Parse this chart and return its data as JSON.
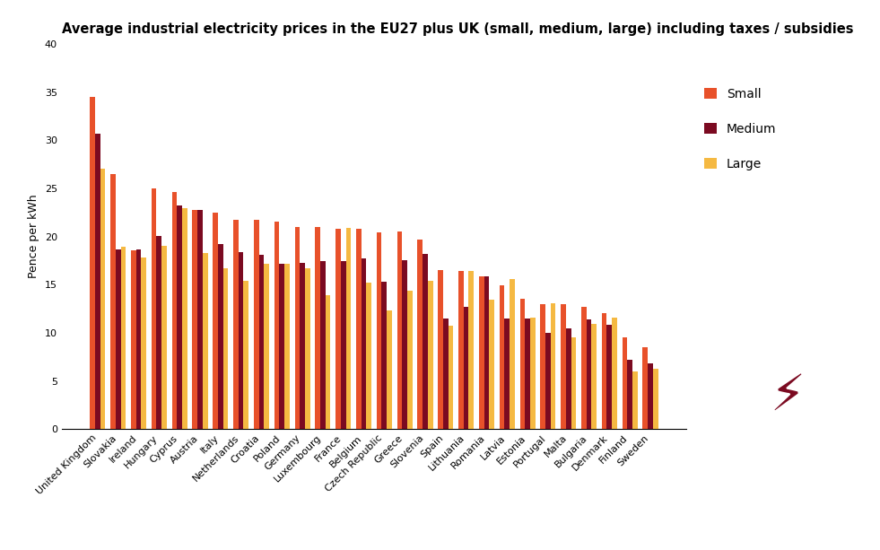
{
  "title": "Average industrial electricity prices in the EU27 plus UK (small, medium, large) including taxes / subsidies",
  "ylabel": "Pence per kWh",
  "ylim": [
    0,
    40
  ],
  "yticks": [
    0,
    5,
    10,
    15,
    20,
    25,
    30,
    35,
    40
  ],
  "countries": [
    "United Kingdom",
    "Slovakia",
    "Ireland",
    "Hungary",
    "Cyprus",
    "Austria",
    "Italy",
    "Netherlands",
    "Croatia",
    "Poland",
    "Germany",
    "Luxembourg",
    "France",
    "Belgium",
    "Czech Republic",
    "Greece",
    "Slovenia",
    "Spain",
    "Lithuania",
    "Romania",
    "Latvia",
    "Estonia",
    "Portugal",
    "Malta",
    "Bulgaria",
    "Denmark",
    "Finland",
    "Sweden"
  ],
  "small": [
    34.5,
    26.5,
    18.6,
    25.0,
    24.6,
    22.8,
    22.5,
    21.7,
    21.7,
    21.5,
    21.0,
    21.0,
    20.8,
    20.8,
    20.4,
    20.5,
    19.7,
    16.5,
    16.4,
    15.9,
    14.9,
    13.5,
    13.0,
    13.0,
    12.7,
    12.0,
    9.5,
    8.5
  ],
  "medium": [
    30.7,
    18.7,
    18.7,
    20.1,
    23.2,
    22.8,
    19.2,
    18.4,
    18.1,
    17.2,
    17.3,
    17.4,
    17.4,
    17.7,
    15.3,
    17.5,
    18.2,
    11.5,
    12.7,
    15.9,
    11.5,
    11.5,
    10.0,
    10.5,
    11.4,
    10.8,
    7.2,
    6.8
  ],
  "large": [
    27.0,
    18.9,
    17.8,
    19.0,
    22.9,
    18.3,
    16.7,
    15.4,
    17.2,
    17.2,
    16.7,
    13.9,
    20.9,
    15.2,
    12.3,
    14.4,
    15.4,
    10.7,
    16.4,
    13.4,
    15.6,
    11.6,
    13.1,
    9.5,
    10.9,
    11.6,
    6.0,
    6.3
  ],
  "color_small": "#E8512A",
  "color_medium": "#7B0A21",
  "color_large": "#F5B942",
  "bar_width": 0.25,
  "title_fontsize": 10.5,
  "label_fontsize": 9,
  "tick_fontsize": 8,
  "legend_fontsize": 10,
  "background_color": "#FFFFFF"
}
